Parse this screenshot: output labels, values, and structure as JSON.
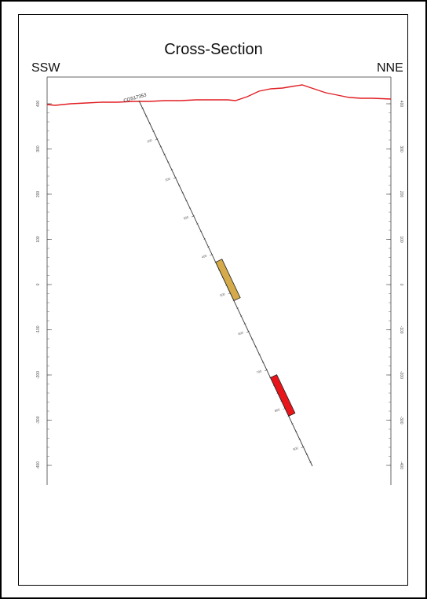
{
  "title": "Cross-Section",
  "direction_left": "SSW",
  "direction_right": "NNE",
  "hole_id": "COS17353",
  "elevation_ticks": [
    {
      "value": 400,
      "label": "400"
    },
    {
      "value": 300,
      "label": "300"
    },
    {
      "value": 200,
      "label": "200"
    },
    {
      "value": 100,
      "label": "100"
    },
    {
      "value": 0,
      "label": "0"
    },
    {
      "value": -100,
      "label": "-100"
    },
    {
      "value": -200,
      "label": "-200"
    },
    {
      "value": -300,
      "label": "-300"
    },
    {
      "value": -400,
      "label": "-400"
    }
  ],
  "depth_marks": [
    {
      "depth": 100,
      "label": "100"
    },
    {
      "depth": 200,
      "label": "200"
    },
    {
      "depth": 300,
      "label": "300"
    },
    {
      "depth": 400,
      "label": "400"
    },
    {
      "depth": 500,
      "label": "500"
    },
    {
      "depth": 600,
      "label": "600"
    },
    {
      "depth": 700,
      "label": "700"
    },
    {
      "depth": 800,
      "label": "800"
    },
    {
      "depth": 900,
      "label": "900"
    }
  ],
  "intervals": [
    {
      "from_depth": 420,
      "to_depth": 520,
      "color": "#d4aa4a"
    },
    {
      "from_depth": 720,
      "to_depth": 820,
      "color": "#e8161b"
    }
  ],
  "colors": {
    "topography": "#e01e24",
    "drillhole": "#333333"
  }
}
